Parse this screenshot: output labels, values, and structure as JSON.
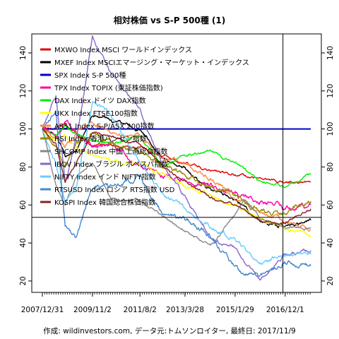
{
  "chart_data": {
    "type": "line",
    "title": "相対株価 vs S-P 500種 (1)",
    "caption": "作成: wildinvestors.com, データ元:トムソンロイター, 最終日: 2017/11/9",
    "xlabel": "",
    "ylabel": "",
    "x_start": "2007/12/31",
    "x_end": "2017/11/9",
    "x_ticks": [
      "2007/12/31",
      "2009/11/2",
      "2011/8/2",
      "2013/3/28",
      "2015/1/29",
      "2016/12/1"
    ],
    "ylim": [
      14,
      150
    ],
    "y_ticks": [
      20,
      40,
      60,
      80,
      100,
      120,
      140
    ],
    "grid": false,
    "legend_position": "top-left",
    "reference_lines": {
      "horizontal_values": [
        100,
        53.5
      ],
      "vertical_date": "2016/11/1"
    },
    "series": [
      {
        "name": "MXWO Index MSCI ワールドインデックス",
        "color": "#e00000",
        "points": [
          [
            "2007/12/31",
            100
          ],
          [
            "2008/6/30",
            100
          ],
          [
            "2008/10/31",
            103
          ],
          [
            "2009/3/31",
            97
          ],
          [
            "2009/11/2",
            92
          ],
          [
            "2010/6/30",
            91
          ],
          [
            "2011/8/2",
            90
          ],
          [
            "2012/6/1",
            86
          ],
          [
            "2013/3/28",
            82
          ],
          [
            "2014/3/3",
            78
          ],
          [
            "2015/1/29",
            76
          ],
          [
            "2016/1/4",
            74
          ],
          [
            "2016/12/1",
            72
          ],
          [
            "2017/11/9",
            72
          ]
        ]
      },
      {
        "name": "MXEF Index MSCIエマージング・マーケット・インデックス",
        "color": "#000000",
        "points": [
          [
            "2007/12/31",
            100
          ],
          [
            "2008/6/30",
            97
          ],
          [
            "2008/10/31",
            86
          ],
          [
            "2009/3/31",
            88
          ],
          [
            "2009/11/2",
            107
          ],
          [
            "2010/6/30",
            104
          ],
          [
            "2011/8/2",
            100
          ],
          [
            "2012/6/1",
            84
          ],
          [
            "2013/3/28",
            79
          ],
          [
            "2014/3/3",
            68
          ],
          [
            "2015/1/29",
            63
          ],
          [
            "2016/1/4",
            51
          ],
          [
            "2016/12/1",
            49
          ],
          [
            "2017/11/9",
            52
          ]
        ]
      },
      {
        "name": "SPX Index S-P 500種",
        "color": "#0000cc",
        "points": [
          [
            "2007/12/31",
            100
          ],
          [
            "2017/11/9",
            100
          ]
        ]
      },
      {
        "name": "TPX Index TOPIX (東証株価指数)",
        "color": "#ff00aa",
        "points": [
          [
            "2007/12/31",
            100
          ],
          [
            "2008/6/30",
            97
          ],
          [
            "2008/10/31",
            104
          ],
          [
            "2009/3/31",
            99
          ],
          [
            "2009/11/2",
            91
          ],
          [
            "2010/6/30",
            92
          ],
          [
            "2011/8/2",
            80
          ],
          [
            "2012/6/1",
            75
          ],
          [
            "2013/3/28",
            73
          ],
          [
            "2014/3/3",
            70
          ],
          [
            "2015/1/29",
            66
          ],
          [
            "2016/1/4",
            62
          ],
          [
            "2016/12/1",
            58
          ],
          [
            "2017/11/9",
            60
          ]
        ]
      },
      {
        "name": "DAX Index ドイツ DAX指数",
        "color": "#00ee00",
        "points": [
          [
            "2007/12/31",
            100
          ],
          [
            "2008/6/30",
            96
          ],
          [
            "2008/10/31",
            102
          ],
          [
            "2009/3/31",
            97
          ],
          [
            "2009/11/2",
            94
          ],
          [
            "2010/6/30",
            92
          ],
          [
            "2011/8/2",
            96
          ],
          [
            "2012/6/1",
            80
          ],
          [
            "2013/3/28",
            86
          ],
          [
            "2014/3/3",
            88
          ],
          [
            "2015/1/29",
            82
          ],
          [
            "2016/1/4",
            72
          ],
          [
            "2016/12/1",
            70
          ],
          [
            "2017/11/9",
            76
          ]
        ]
      },
      {
        "name": "UKX Index FTSE100指数",
        "color": "#ffff00",
        "points": [
          [
            "2007/12/31",
            100
          ],
          [
            "2008/6/30",
            94
          ],
          [
            "2008/10/31",
            96
          ],
          [
            "2009/3/31",
            90
          ],
          [
            "2009/11/2",
            86
          ],
          [
            "2010/6/30",
            83
          ],
          [
            "2011/8/2",
            82
          ],
          [
            "2012/6/1",
            76
          ],
          [
            "2013/3/28",
            70
          ],
          [
            "2014/3/3",
            65
          ],
          [
            "2015/1/29",
            60
          ],
          [
            "2016/1/4",
            52
          ],
          [
            "2016/12/1",
            48
          ],
          [
            "2017/11/9",
            44
          ]
        ]
      },
      {
        "name": "AS51 Index S-P/ASX 200指数",
        "color": "#ff8844",
        "points": [
          [
            "2007/12/31",
            100
          ],
          [
            "2008/6/30",
            96
          ],
          [
            "2008/10/31",
            90
          ],
          [
            "2009/3/31",
            98
          ],
          [
            "2009/11/2",
            104
          ],
          [
            "2010/6/30",
            98
          ],
          [
            "2011/8/2",
            96
          ],
          [
            "2012/6/1",
            84
          ],
          [
            "2013/3/28",
            82
          ],
          [
            "2014/3/3",
            74
          ],
          [
            "2015/1/29",
            64
          ],
          [
            "2016/1/4",
            56
          ],
          [
            "2016/12/1",
            52
          ],
          [
            "2017/11/9",
            47
          ]
        ]
      },
      {
        "name": "HSI Index 香港ハンセン指数",
        "color": "#998800",
        "points": [
          [
            "2007/12/31",
            100
          ],
          [
            "2008/6/30",
            90
          ],
          [
            "2008/10/31",
            80
          ],
          [
            "2009/3/31",
            92
          ],
          [
            "2009/11/2",
            98
          ],
          [
            "2010/6/30",
            92
          ],
          [
            "2011/8/2",
            88
          ],
          [
            "2012/6/1",
            80
          ],
          [
            "2013/3/28",
            76
          ],
          [
            "2014/3/3",
            68
          ],
          [
            "2015/1/29",
            66
          ],
          [
            "2016/1/4",
            56
          ],
          [
            "2016/12/1",
            56
          ],
          [
            "2017/11/9",
            62
          ]
        ]
      },
      {
        "name": "SHCOMP Index 中国 上海総合指数",
        "color": "#888888",
        "points": [
          [
            "2007/12/31",
            100
          ],
          [
            "2008/6/30",
            70
          ],
          [
            "2008/10/31",
            60
          ],
          [
            "2009/3/31",
            75
          ],
          [
            "2009/11/2",
            82
          ],
          [
            "2010/6/30",
            64
          ],
          [
            "2011/8/2",
            62
          ],
          [
            "2012/6/1",
            54
          ],
          [
            "2013/3/28",
            46
          ],
          [
            "2014/3/3",
            38
          ],
          [
            "2015/1/29",
            55
          ],
          [
            "2015/6/12",
            63
          ],
          [
            "2016/1/4",
            52
          ],
          [
            "2016/12/1",
            48
          ],
          [
            "2017/11/9",
            48
          ]
        ]
      },
      {
        "name": "IBOV Index ブラジル ボベスパ指数",
        "color": "#8866cc",
        "points": [
          [
            "2007/12/31",
            100
          ],
          [
            "2008/6/30",
            118
          ],
          [
            "2008/10/31",
            72
          ],
          [
            "2009/3/31",
            95
          ],
          [
            "2009/11/2",
            148
          ],
          [
            "2010/6/30",
            130
          ],
          [
            "2011/8/2",
            110
          ],
          [
            "2012/6/1",
            80
          ],
          [
            "2013/3/28",
            64
          ],
          [
            "2014/3/3",
            42
          ],
          [
            "2015/1/29",
            38
          ],
          [
            "2016/1/4",
            20
          ],
          [
            "2016/12/1",
            34
          ],
          [
            "2017/11/9",
            36
          ]
        ]
      },
      {
        "name": "NIFTY Index インド NIFTY指数",
        "color": "#66ccff",
        "points": [
          [
            "2007/12/31",
            100
          ],
          [
            "2008/6/30",
            82
          ],
          [
            "2008/10/31",
            60
          ],
          [
            "2009/3/31",
            70
          ],
          [
            "2009/11/2",
            115
          ],
          [
            "2010/6/30",
            108
          ],
          [
            "2011/8/2",
            82
          ],
          [
            "2012/6/1",
            66
          ],
          [
            "2013/3/28",
            58
          ],
          [
            "2014/3/3",
            48
          ],
          [
            "2015/1/29",
            42
          ],
          [
            "2016/1/4",
            30
          ],
          [
            "2016/12/1",
            33
          ],
          [
            "2017/11/9",
            34
          ]
        ]
      },
      {
        "name": "RTSUSD Index ロシア RTS指数 USD",
        "color": "#4488cc",
        "points": [
          [
            "2007/12/31",
            100
          ],
          [
            "2008/6/30",
            110
          ],
          [
            "2008/10/31",
            48
          ],
          [
            "2009/3/31",
            42
          ],
          [
            "2009/11/2",
            70
          ],
          [
            "2010/6/30",
            70
          ],
          [
            "2011/8/2",
            75
          ],
          [
            "2012/6/1",
            55
          ],
          [
            "2013/3/28",
            52
          ],
          [
            "2014/3/3",
            44
          ],
          [
            "2015/1/29",
            26
          ],
          [
            "2016/1/4",
            22
          ],
          [
            "2016/12/1",
            30
          ],
          [
            "2017/11/9",
            28
          ]
        ]
      },
      {
        "name": "KOSPI Index 韓国総合株価指数",
        "color": "#882222",
        "points": [
          [
            "2007/12/31",
            100
          ],
          [
            "2008/6/30",
            92
          ],
          [
            "2008/10/31",
            72
          ],
          [
            "2009/3/31",
            82
          ],
          [
            "2009/11/2",
            98
          ],
          [
            "2010/6/30",
            96
          ],
          [
            "2011/8/2",
            92
          ],
          [
            "2012/6/1",
            80
          ],
          [
            "2013/3/28",
            72
          ],
          [
            "2014/3/3",
            64
          ],
          [
            "2015/1/29",
            60
          ],
          [
            "2016/1/4",
            52
          ],
          [
            "2016/12/1",
            50
          ],
          [
            "2017/11/9",
            58
          ]
        ]
      }
    ]
  }
}
